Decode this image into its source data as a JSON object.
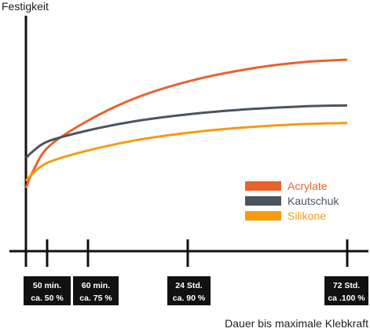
{
  "chart_data": {
    "type": "line",
    "ylabel": "Festigkeit",
    "xlabel": "Dauer bis maximale Klebkraft",
    "ticks": [
      {
        "line1": "50 min.",
        "line2": "ca. 50 %"
      },
      {
        "line1": "60 min.",
        "line2": "ca. 75 %"
      },
      {
        "line1": "24 Std.",
        "line2": "ca. 90 %"
      },
      {
        "line1": "72 Std.",
        "line2": "ca .100 %"
      }
    ],
    "legend_position": "right",
    "series": [
      {
        "name": "Acrylate",
        "color": "#e8622c",
        "y_start": 0.27,
        "y_end": 1.0
      },
      {
        "name": "Kautschuk",
        "color": "#4a5560",
        "y_start": 0.44,
        "y_end": 0.74
      },
      {
        "name": "Silikone",
        "color": "#f39c12",
        "y_start": 0.31,
        "y_end": 0.64
      }
    ]
  }
}
